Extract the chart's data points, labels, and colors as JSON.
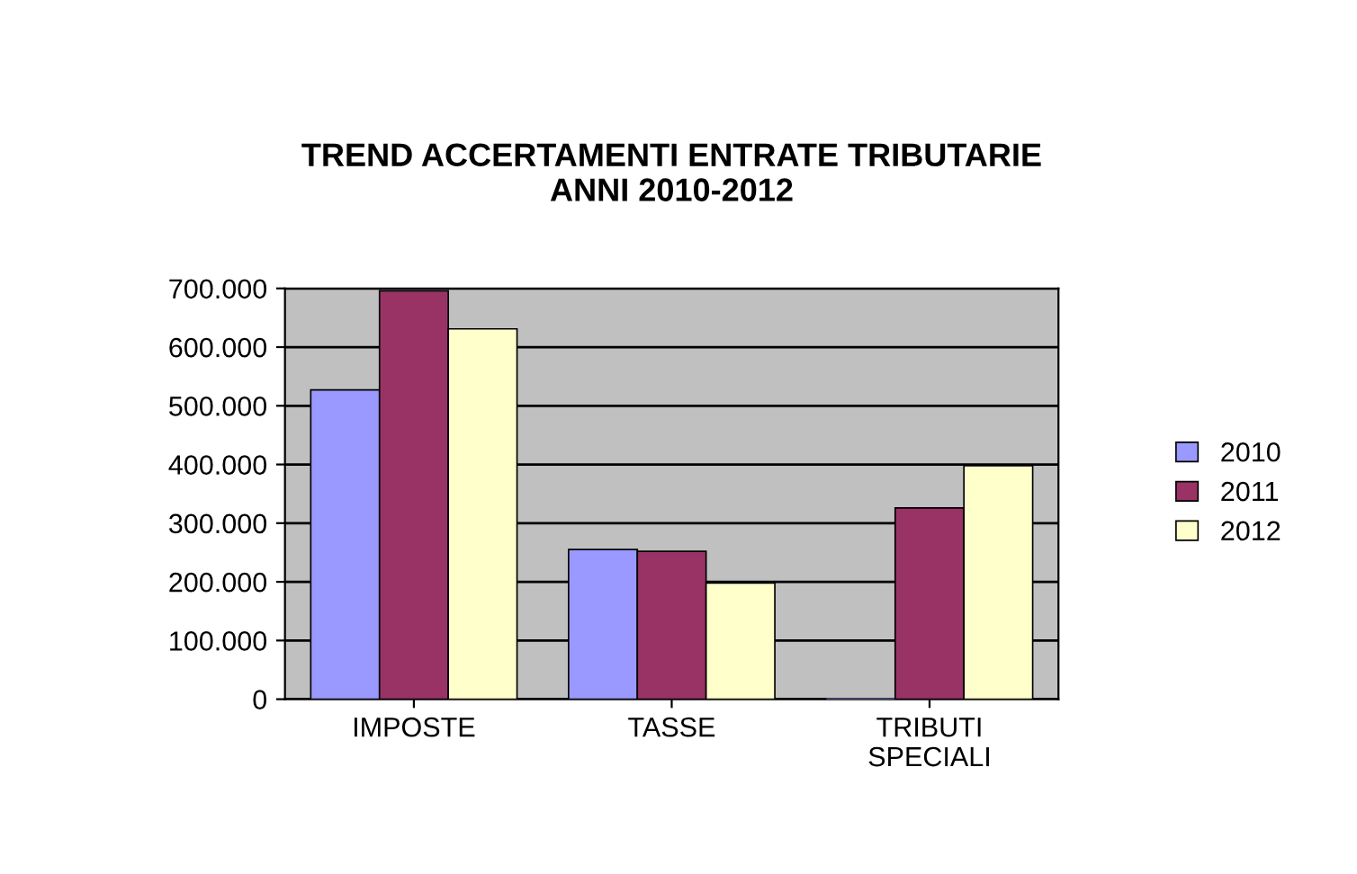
{
  "chart_data": {
    "type": "bar",
    "title": "TREND ACCERTAMENTI ENTRATE TRIBUTARIE\nANNI 2010-2012",
    "categories": [
      "IMPOSTE",
      "TASSE",
      "TRIBUTI\nSPECIALI"
    ],
    "series": [
      {
        "name": "2010",
        "color": "#9999ff",
        "values": [
          527000,
          255000,
          0
        ]
      },
      {
        "name": "2011",
        "color": "#993366",
        "values": [
          696000,
          252000,
          326000
        ]
      },
      {
        "name": "2012",
        "color": "#ffffcc",
        "values": [
          631000,
          198000,
          398000
        ]
      }
    ],
    "ylim": [
      0,
      700000
    ],
    "yticks": [
      {
        "value": 0,
        "label": "0"
      },
      {
        "value": 100000,
        "label": "100.000"
      },
      {
        "value": 200000,
        "label": "200.000"
      },
      {
        "value": 300000,
        "label": "300.000"
      },
      {
        "value": 400000,
        "label": "400.000"
      },
      {
        "value": 500000,
        "label": "500.000"
      },
      {
        "value": 600000,
        "label": "600.000"
      },
      {
        "value": 700000,
        "label": "700.000"
      }
    ],
    "grid": "y",
    "legend": "right"
  }
}
